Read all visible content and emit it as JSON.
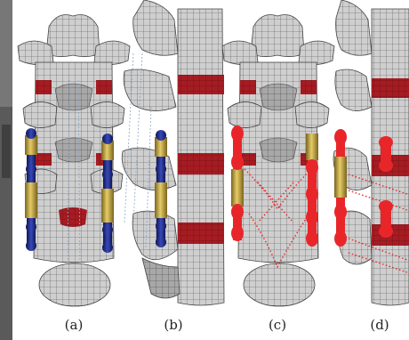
{
  "panels": [
    {
      "id": "a",
      "label": "(a)"
    },
    {
      "id": "b",
      "label": "(b)"
    },
    {
      "id": "c",
      "label": "(c)"
    },
    {
      "id": "d",
      "label": "(d)"
    }
  ],
  "colors": {
    "background": "#ffffff",
    "bone": "#c9c9c9",
    "bone_shade": "#9a9a9a",
    "mesh_line": "#555555",
    "disc": "#a51c22",
    "rod_gold": "#c8a838",
    "screw_blue": "#1f2a8a",
    "stress_red": "#e8262a"
  }
}
